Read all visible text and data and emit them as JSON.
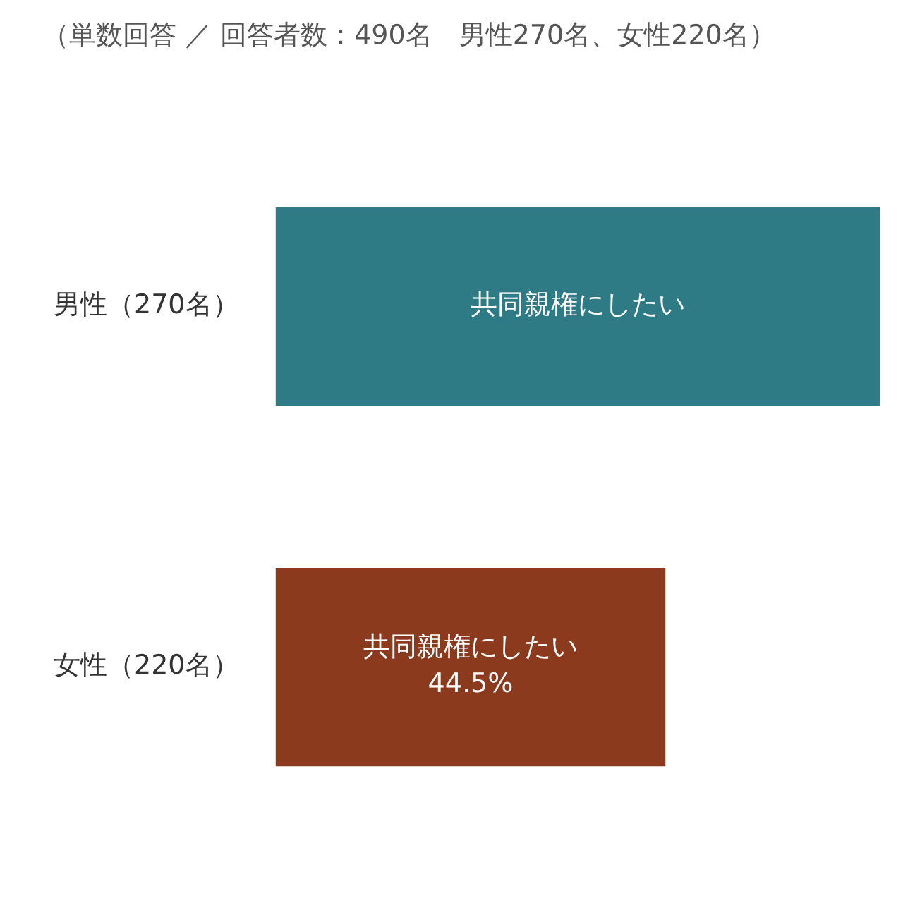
{
  "chart_data": {
    "type": "bar",
    "orientation": "horizontal",
    "title": "（単数回答 ／ 回答者数：490名　男性270名、女性220名）",
    "categories": [
      "男性（270名）",
      "女性（220名）"
    ],
    "series": [
      {
        "name": "共同親権にしたい",
        "colors": [
          "#2e7a85",
          "#8b3a1e"
        ],
        "values": [
          69,
          44.5
        ],
        "value_labels": [
          null,
          "44.5%"
        ]
      }
    ],
    "tick_labels": "y",
    "legend": false
  }
}
